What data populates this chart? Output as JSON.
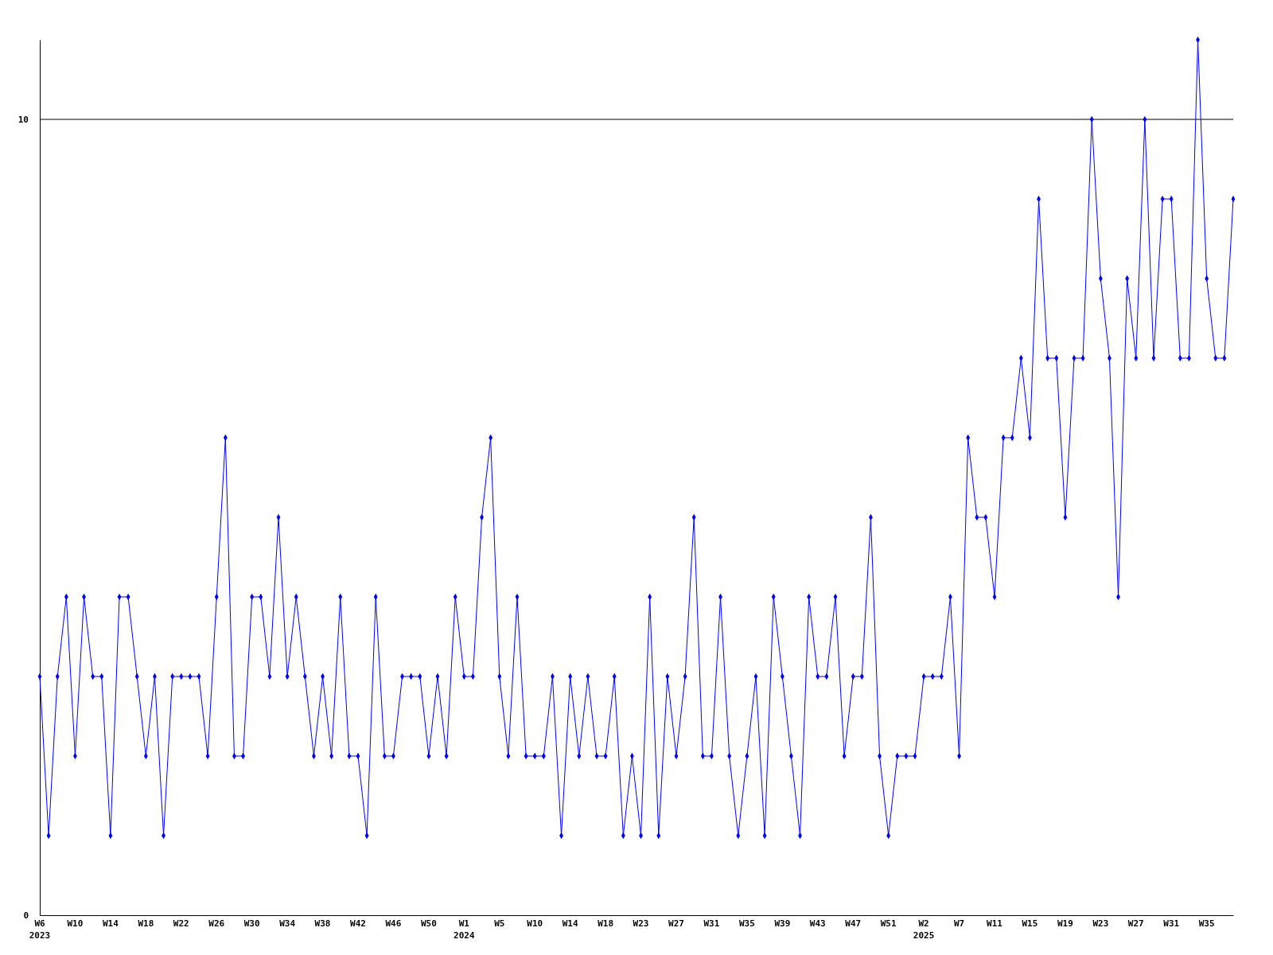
{
  "chart_data": {
    "type": "line",
    "categories": [
      "W6\n2023",
      null,
      null,
      null,
      "W10",
      null,
      null,
      null,
      "W14",
      null,
      null,
      null,
      "W18",
      null,
      null,
      null,
      "W22",
      null,
      null,
      null,
      "W26",
      null,
      null,
      null,
      "W30",
      null,
      null,
      null,
      "W34",
      null,
      null,
      null,
      "W38",
      null,
      null,
      null,
      "W42",
      null,
      null,
      null,
      "W46",
      null,
      null,
      null,
      "W50",
      null,
      null,
      null,
      "W1\n2024",
      null,
      null,
      null,
      "W5",
      null,
      null,
      null,
      "W10",
      null,
      null,
      null,
      "W14",
      null,
      null,
      null,
      "W18",
      null,
      null,
      null,
      "W23",
      null,
      null,
      null,
      "W27",
      null,
      null,
      null,
      "W31",
      null,
      null,
      null,
      "W35",
      null,
      null,
      null,
      "W39",
      null,
      null,
      null,
      "W43",
      null,
      null,
      null,
      "W47",
      null,
      null,
      null,
      "W51",
      null,
      null,
      null,
      "W2\n2025",
      null,
      null,
      null,
      "W7",
      null,
      null,
      null,
      "W11",
      null,
      null,
      null,
      "W15",
      null,
      null,
      null,
      "W19",
      null,
      null,
      null,
      "W23",
      null,
      null,
      null,
      "W27",
      null,
      null,
      null,
      "W31",
      null,
      null,
      null,
      "W35",
      null,
      null,
      null
    ],
    "series": [
      {
        "color": "#0000ff",
        "values": [
          3,
          1,
          3,
          4,
          2,
          4,
          3,
          3,
          1,
          4,
          4,
          3,
          2,
          3,
          1,
          3,
          3,
          3,
          3,
          2,
          4,
          6,
          2,
          2,
          4,
          4,
          3,
          5,
          3,
          4,
          3,
          2,
          3,
          2,
          4,
          2,
          2,
          1,
          4,
          2,
          2,
          3,
          3,
          3,
          2,
          3,
          2,
          4,
          3,
          3,
          5,
          6,
          3,
          2,
          4,
          2,
          2,
          2,
          3,
          1,
          3,
          2,
          3,
          2,
          2,
          3,
          1,
          2,
          1,
          4,
          1,
          3,
          2,
          3,
          5,
          2,
          2,
          4,
          2,
          1,
          2,
          3,
          1,
          4,
          3,
          2,
          1,
          4,
          3,
          3,
          4,
          2,
          3,
          3,
          5,
          2,
          1,
          2,
          2,
          2,
          3,
          3,
          3,
          4,
          2,
          6,
          5,
          5,
          4,
          6,
          6,
          7,
          6,
          9,
          7,
          7,
          5,
          7,
          7,
          10,
          8,
          7,
          4,
          8,
          7,
          10,
          7,
          9,
          9,
          7,
          7,
          11,
          8,
          7,
          7,
          9
        ]
      }
    ],
    "ylim": [
      0,
      11
    ],
    "yticks": [
      0,
      10
    ],
    "grid": "y",
    "marker": "diamond",
    "line_style": "solid"
  }
}
